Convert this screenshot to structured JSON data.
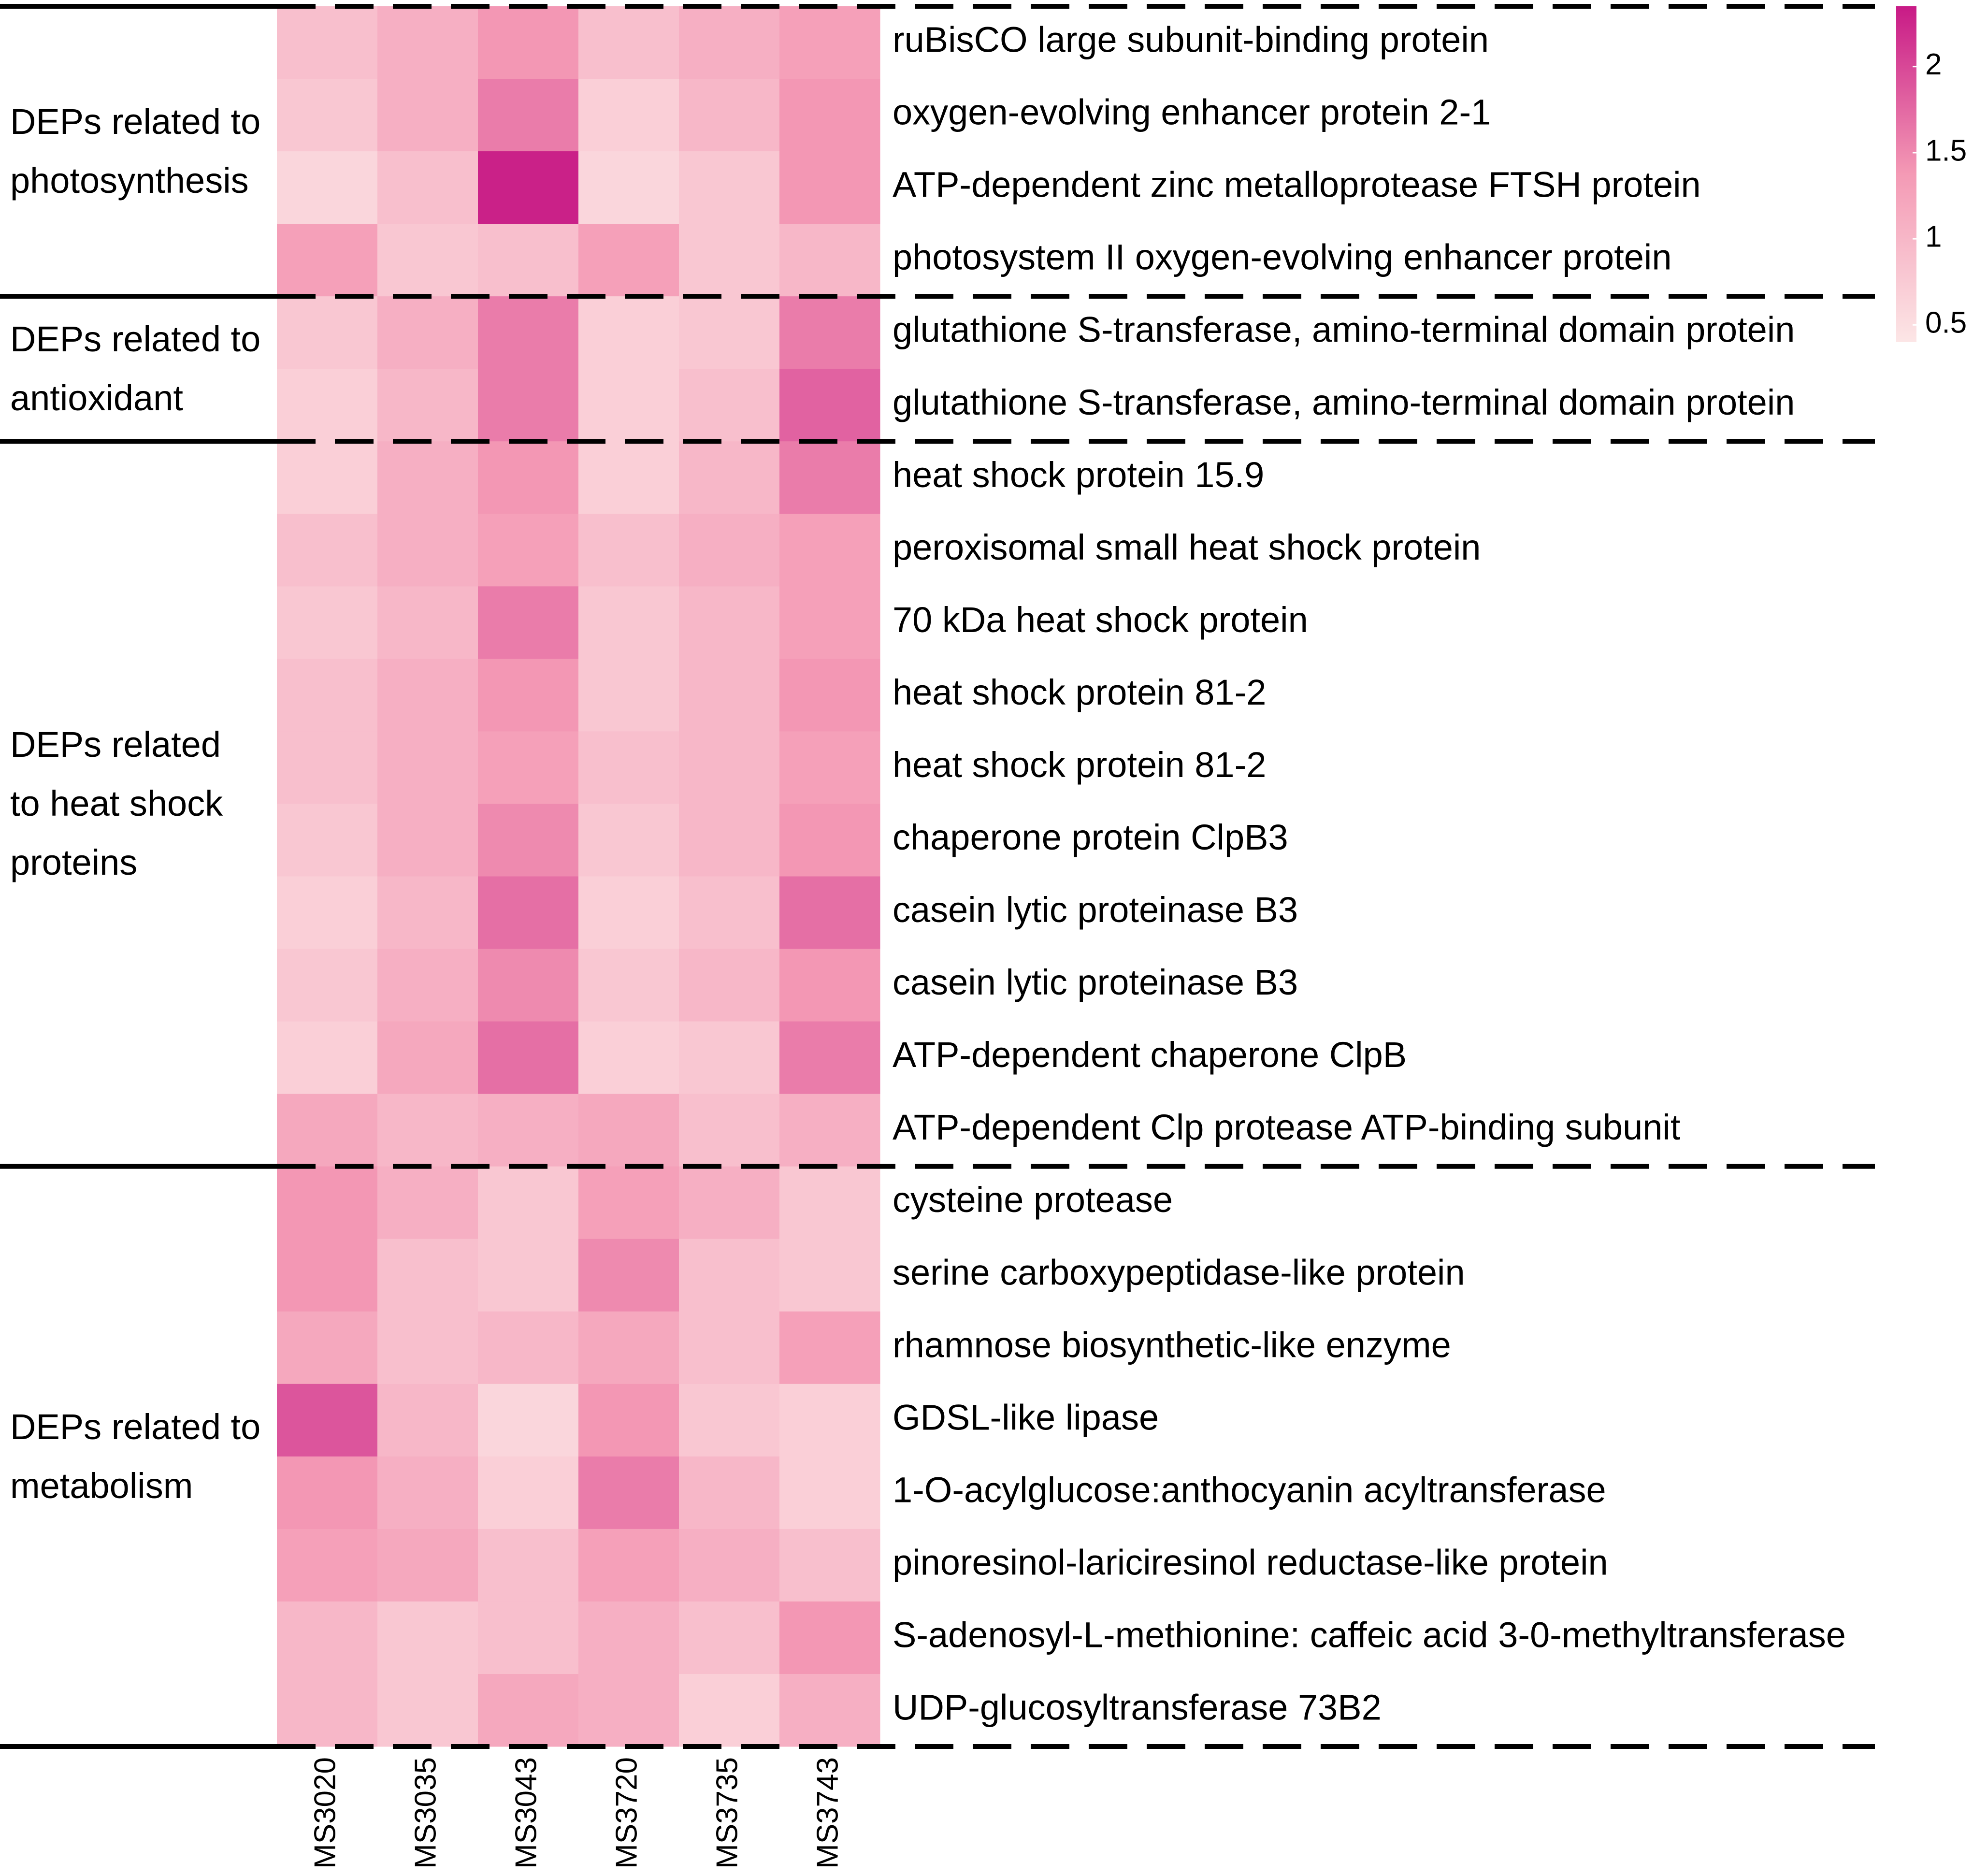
{
  "chart_data": {
    "type": "heatmap",
    "columns": [
      "MS3020",
      "MS3035",
      "MS3043",
      "MS3720",
      "MS3735",
      "MS3743"
    ],
    "groups": [
      {
        "name": "DEPs related to\nphotosynthesis",
        "rows": [
          "ruBisCO large subunit-binding protein",
          "oxygen-evolving enhancer protein 2-1",
          "ATP-dependent zinc metalloprotease FTSH protein",
          "photosystem II oxygen-evolving enhancer protein"
        ],
        "values": [
          [
            0.9,
            1.1,
            1.4,
            0.9,
            1.1,
            1.3
          ],
          [
            0.8,
            1.1,
            1.6,
            0.7,
            1.0,
            1.4
          ],
          [
            0.6,
            0.9,
            2.3,
            0.6,
            0.8,
            1.4
          ],
          [
            1.3,
            0.8,
            0.9,
            1.3,
            0.8,
            1.0
          ]
        ]
      },
      {
        "name": "DEPs related to\nantioxidant",
        "rows": [
          "glutathione S-transferase, amino-terminal domain protein",
          "glutathione S-transferase, amino-terminal domain protein"
        ],
        "values": [
          [
            0.8,
            1.1,
            1.6,
            0.7,
            0.8,
            1.6
          ],
          [
            0.7,
            1.0,
            1.6,
            0.7,
            0.9,
            1.8
          ]
        ]
      },
      {
        "name": "DEPs related\nto heat shock\nproteins",
        "rows": [
          "heat shock protein 15.9",
          "peroxisomal small heat shock protein",
          "70 kDa heat shock protein",
          "heat shock protein 81-2",
          "heat shock protein 81-2",
          "chaperone protein ClpB3",
          "casein lytic proteinase B3",
          "casein lytic proteinase B3",
          "ATP-dependent chaperone ClpB",
          "ATP-dependent Clp protease ATP-binding subunit"
        ],
        "values": [
          [
            0.7,
            1.1,
            1.4,
            0.7,
            1.0,
            1.6
          ],
          [
            0.9,
            1.1,
            1.3,
            0.9,
            1.1,
            1.3
          ],
          [
            0.8,
            1.0,
            1.6,
            0.8,
            1.0,
            1.3
          ],
          [
            0.9,
            1.1,
            1.4,
            0.8,
            1.0,
            1.4
          ],
          [
            0.9,
            1.1,
            1.3,
            0.9,
            1.0,
            1.3
          ],
          [
            0.8,
            1.1,
            1.5,
            0.8,
            1.0,
            1.4
          ],
          [
            0.7,
            1.0,
            1.7,
            0.7,
            0.9,
            1.7
          ],
          [
            0.8,
            1.1,
            1.5,
            0.8,
            1.0,
            1.4
          ],
          [
            0.7,
            1.2,
            1.7,
            0.7,
            0.8,
            1.6
          ],
          [
            1.2,
            1.0,
            1.1,
            1.2,
            0.9,
            1.1
          ]
        ]
      },
      {
        "name": "DEPs related to\nmetabolism",
        "rows": [
          "cysteine protease",
          "serine carboxypeptidase-like protein",
          "rhamnose biosynthetic-like enzyme",
          "GDSL-like lipase",
          "1-O-acylglucose:anthocyanin acyltransferase",
          "pinoresinol-lariciresinol reductase-like protein",
          "S-adenosyl-L-methionine: caffeic acid 3-0-methyltransferase",
          "UDP-glucosyltransferase 73B2"
        ],
        "values": [
          [
            1.4,
            1.1,
            0.8,
            1.3,
            1.1,
            0.8
          ],
          [
            1.4,
            0.9,
            0.8,
            1.5,
            0.9,
            0.8
          ],
          [
            1.2,
            0.9,
            1.0,
            1.2,
            0.9,
            1.3
          ],
          [
            1.9,
            1.0,
            0.6,
            1.4,
            0.8,
            0.7
          ],
          [
            1.4,
            1.1,
            0.7,
            1.6,
            1.0,
            0.7
          ],
          [
            1.3,
            1.2,
            0.9,
            1.3,
            1.1,
            0.9
          ],
          [
            1.0,
            0.8,
            0.9,
            1.1,
            0.9,
            1.4
          ],
          [
            1.0,
            0.8,
            1.2,
            1.1,
            0.7,
            1.1
          ]
        ]
      }
    ],
    "clim": [
      0.4,
      2.35
    ],
    "cticks": [
      0.5,
      1,
      1.5,
      2
    ],
    "colorscale": [
      "#fce6e6",
      "#f49ab5",
      "#c81a86"
    ]
  }
}
